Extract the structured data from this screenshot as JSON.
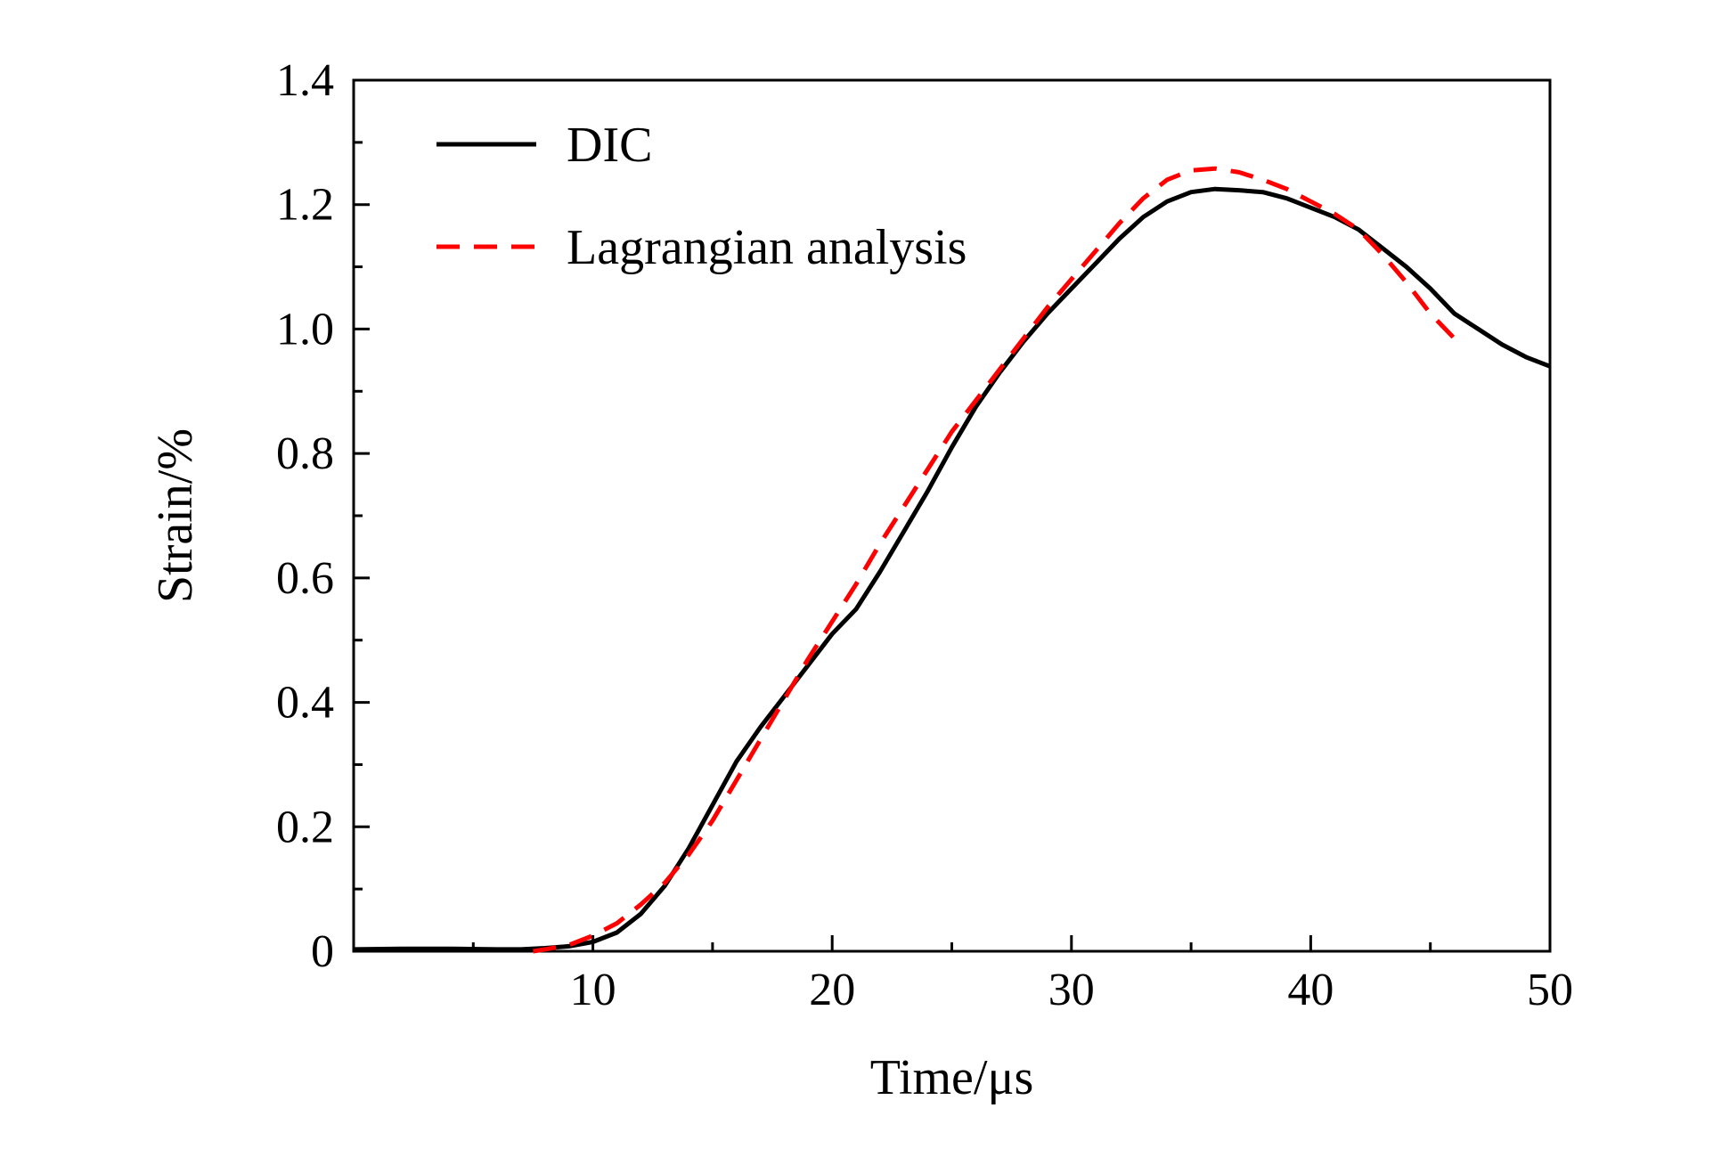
{
  "chart_data": {
    "type": "line",
    "title": "",
    "xlabel": "Time/μs",
    "ylabel": "Strain/%",
    "xlim": [
      0,
      50
    ],
    "ylim": [
      0,
      1.4
    ],
    "xticks": [
      10,
      20,
      30,
      40,
      50
    ],
    "xtick_labels": [
      "10",
      "20",
      "30",
      "40",
      "50"
    ],
    "yticks": [
      0,
      0.2,
      0.4,
      0.6,
      0.8,
      1.0,
      1.2,
      1.4
    ],
    "ytick_labels": [
      "0",
      "0.2",
      "0.4",
      "0.6",
      "0.8",
      "1.0",
      "1.2",
      "1.4"
    ],
    "grid": false,
    "legend_position": "top-left",
    "series": [
      {
        "name": "DIC",
        "color": "#000000",
        "style": "solid",
        "x": [
          0,
          2,
          4,
          6,
          7,
          8,
          9,
          10,
          11,
          12,
          13,
          14,
          15,
          16,
          17,
          18,
          19,
          20,
          21,
          22,
          23,
          24,
          25,
          26,
          27,
          28,
          29,
          30,
          31,
          32,
          33,
          34,
          35,
          36,
          37,
          38,
          39,
          40,
          41,
          42,
          43,
          44,
          45,
          46,
          47,
          48,
          49,
          50
        ],
        "y": [
          0.003,
          0.004,
          0.004,
          0.003,
          0.003,
          0.005,
          0.008,
          0.015,
          0.03,
          0.06,
          0.105,
          0.165,
          0.235,
          0.305,
          0.36,
          0.41,
          0.46,
          0.51,
          0.55,
          0.61,
          0.675,
          0.74,
          0.81,
          0.875,
          0.93,
          0.98,
          1.025,
          1.065,
          1.105,
          1.145,
          1.18,
          1.205,
          1.22,
          1.225,
          1.223,
          1.22,
          1.21,
          1.195,
          1.18,
          1.16,
          1.13,
          1.1,
          1.065,
          1.025,
          1.0,
          0.975,
          0.955,
          0.94
        ]
      },
      {
        "name": "Lagrangian analysis",
        "color": "#ff0000",
        "style": "dashed",
        "x": [
          7.5,
          8,
          9,
          10,
          11,
          12,
          13,
          14,
          15,
          16,
          17,
          18,
          19,
          20,
          21,
          22,
          23,
          24,
          25,
          26,
          27,
          28,
          29,
          30,
          31,
          32,
          33,
          34,
          35,
          36,
          37,
          38,
          39,
          40,
          41,
          42,
          43,
          44,
          45,
          46
        ],
        "y": [
          0.0,
          0.003,
          0.01,
          0.025,
          0.045,
          0.075,
          0.11,
          0.155,
          0.21,
          0.275,
          0.34,
          0.405,
          0.47,
          0.53,
          0.59,
          0.655,
          0.715,
          0.775,
          0.835,
          0.885,
          0.935,
          0.985,
          1.035,
          1.08,
          1.125,
          1.17,
          1.21,
          1.24,
          1.255,
          1.258,
          1.252,
          1.24,
          1.225,
          1.205,
          1.185,
          1.16,
          1.12,
          1.075,
          1.025,
          0.985
        ]
      }
    ]
  }
}
